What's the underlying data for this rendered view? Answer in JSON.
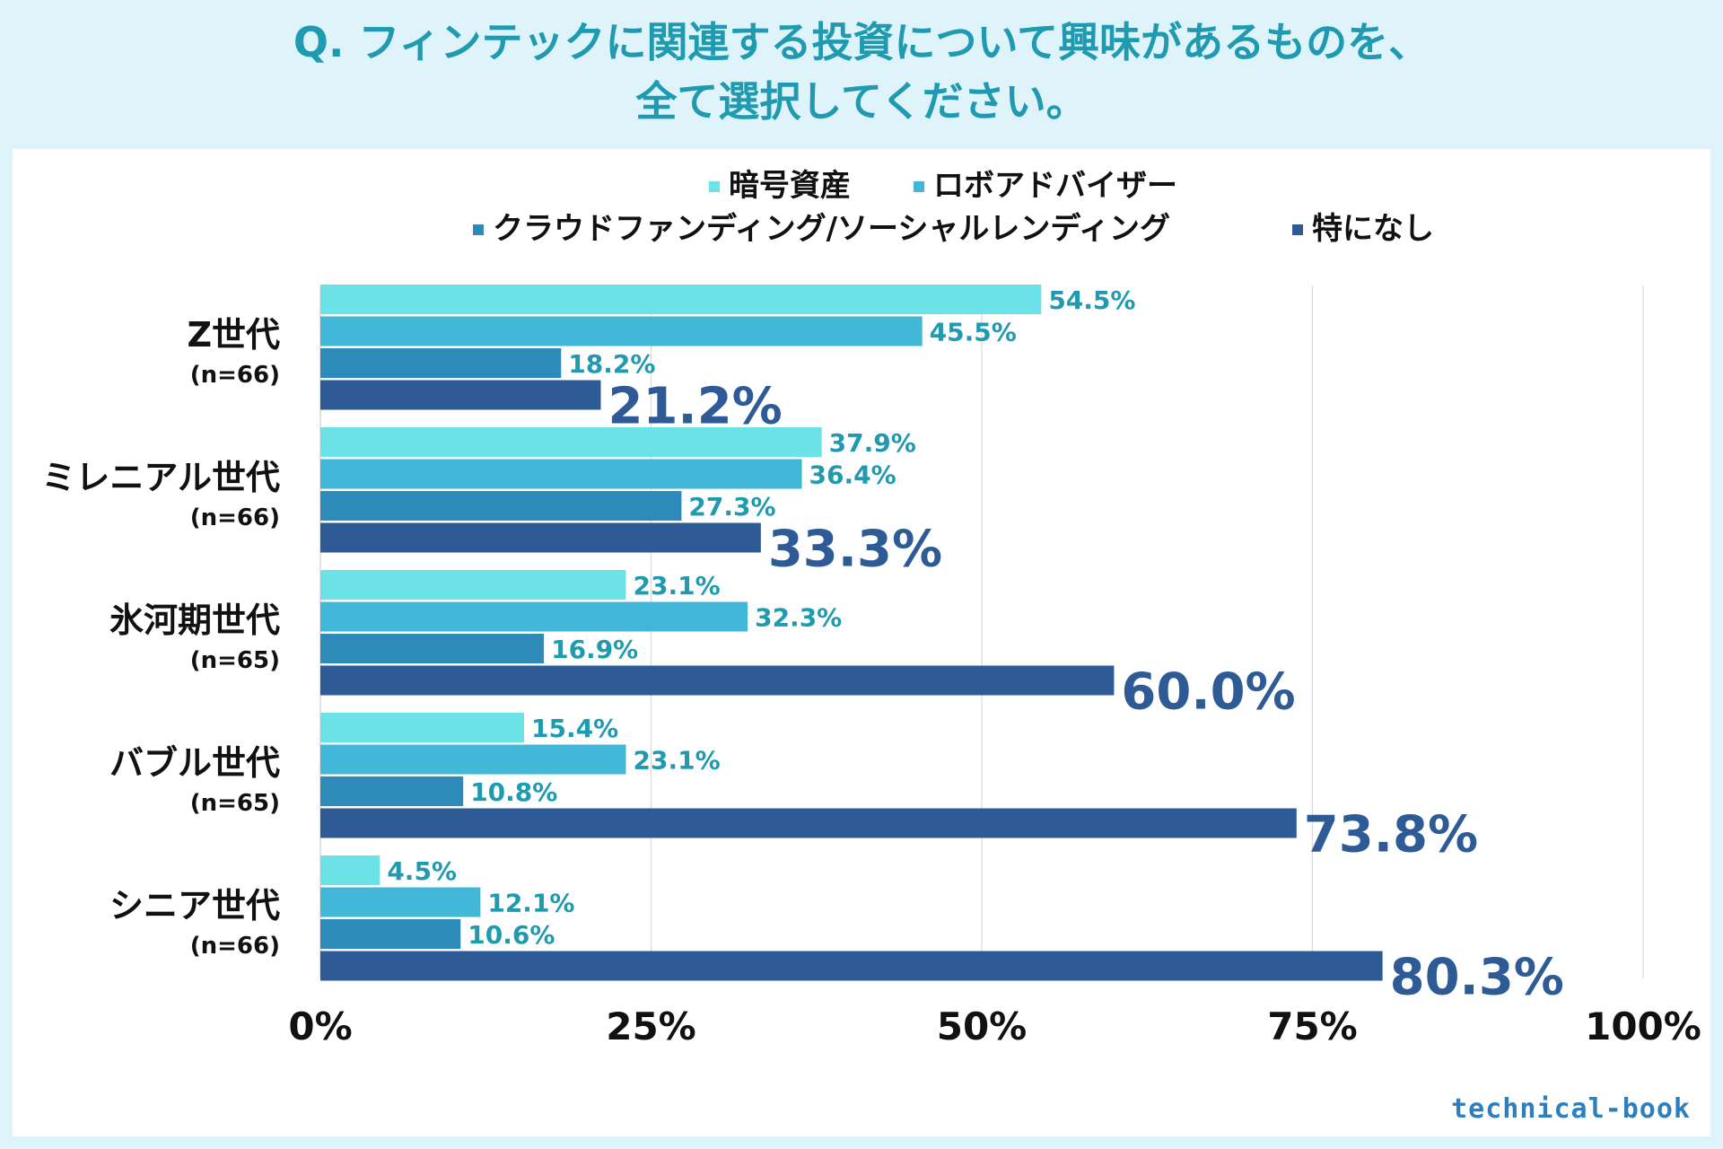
{
  "title": {
    "line1": "Q. フィンテックに関連する投資について興味があるものを、",
    "line2": "全て選択してください。"
  },
  "brand": "technical-book",
  "colors": {
    "title": "#1f9ab0",
    "value_label": "#1f9ab0",
    "big_value_label": "#2e5b96",
    "grid": "#d9d9d9"
  },
  "chart_data": {
    "type": "bar",
    "orientation": "horizontal",
    "title": "Q. フィンテックに関連する投資について興味があるものを、全て選択してください。",
    "xlabel": "",
    "ylabel": "",
    "xlim": [
      0,
      100
    ],
    "ticks": [
      0,
      25,
      50,
      75,
      100
    ],
    "tick_labels": [
      "0%",
      "25%",
      "50%",
      "75%",
      "100%"
    ],
    "grid": true,
    "legend_position": "top",
    "categories": [
      {
        "name": "Z世代",
        "n": "(n=66)"
      },
      {
        "name": "ミレニアル世代",
        "n": "(n=66)"
      },
      {
        "name": "氷河期世代",
        "n": "(n=65)"
      },
      {
        "name": "バブル世代",
        "n": "(n=65)"
      },
      {
        "name": "シニア世代",
        "n": "(n=66)"
      }
    ],
    "series": [
      {
        "name": "暗号資産",
        "color": "#6be3e6",
        "values": [
          54.5,
          37.9,
          23.1,
          15.4,
          4.5
        ],
        "labels": [
          "54.5%",
          "37.9%",
          "23.1%",
          "15.4%",
          "4.5%"
        ]
      },
      {
        "name": "ロボアドバイザー",
        "color": "#42b7d8",
        "values": [
          45.5,
          36.4,
          32.3,
          23.1,
          12.1
        ],
        "labels": [
          "45.5%",
          "36.4%",
          "32.3%",
          "23.1%",
          "12.1%"
        ]
      },
      {
        "name": "クラウドファンディング/ソーシャルレンディング",
        "color": "#2e8ab9",
        "values": [
          18.2,
          27.3,
          16.9,
          10.8,
          10.6
        ],
        "labels": [
          "18.2%",
          "27.3%",
          "16.9%",
          "10.8%",
          "10.6%"
        ]
      },
      {
        "name": "特になし",
        "color": "#2e5b96",
        "values": [
          21.2,
          33.3,
          60.0,
          73.8,
          80.3
        ],
        "labels": [
          "21.2%",
          "33.3%",
          "60.0%",
          "73.8%",
          "80.3%"
        ]
      }
    ]
  }
}
